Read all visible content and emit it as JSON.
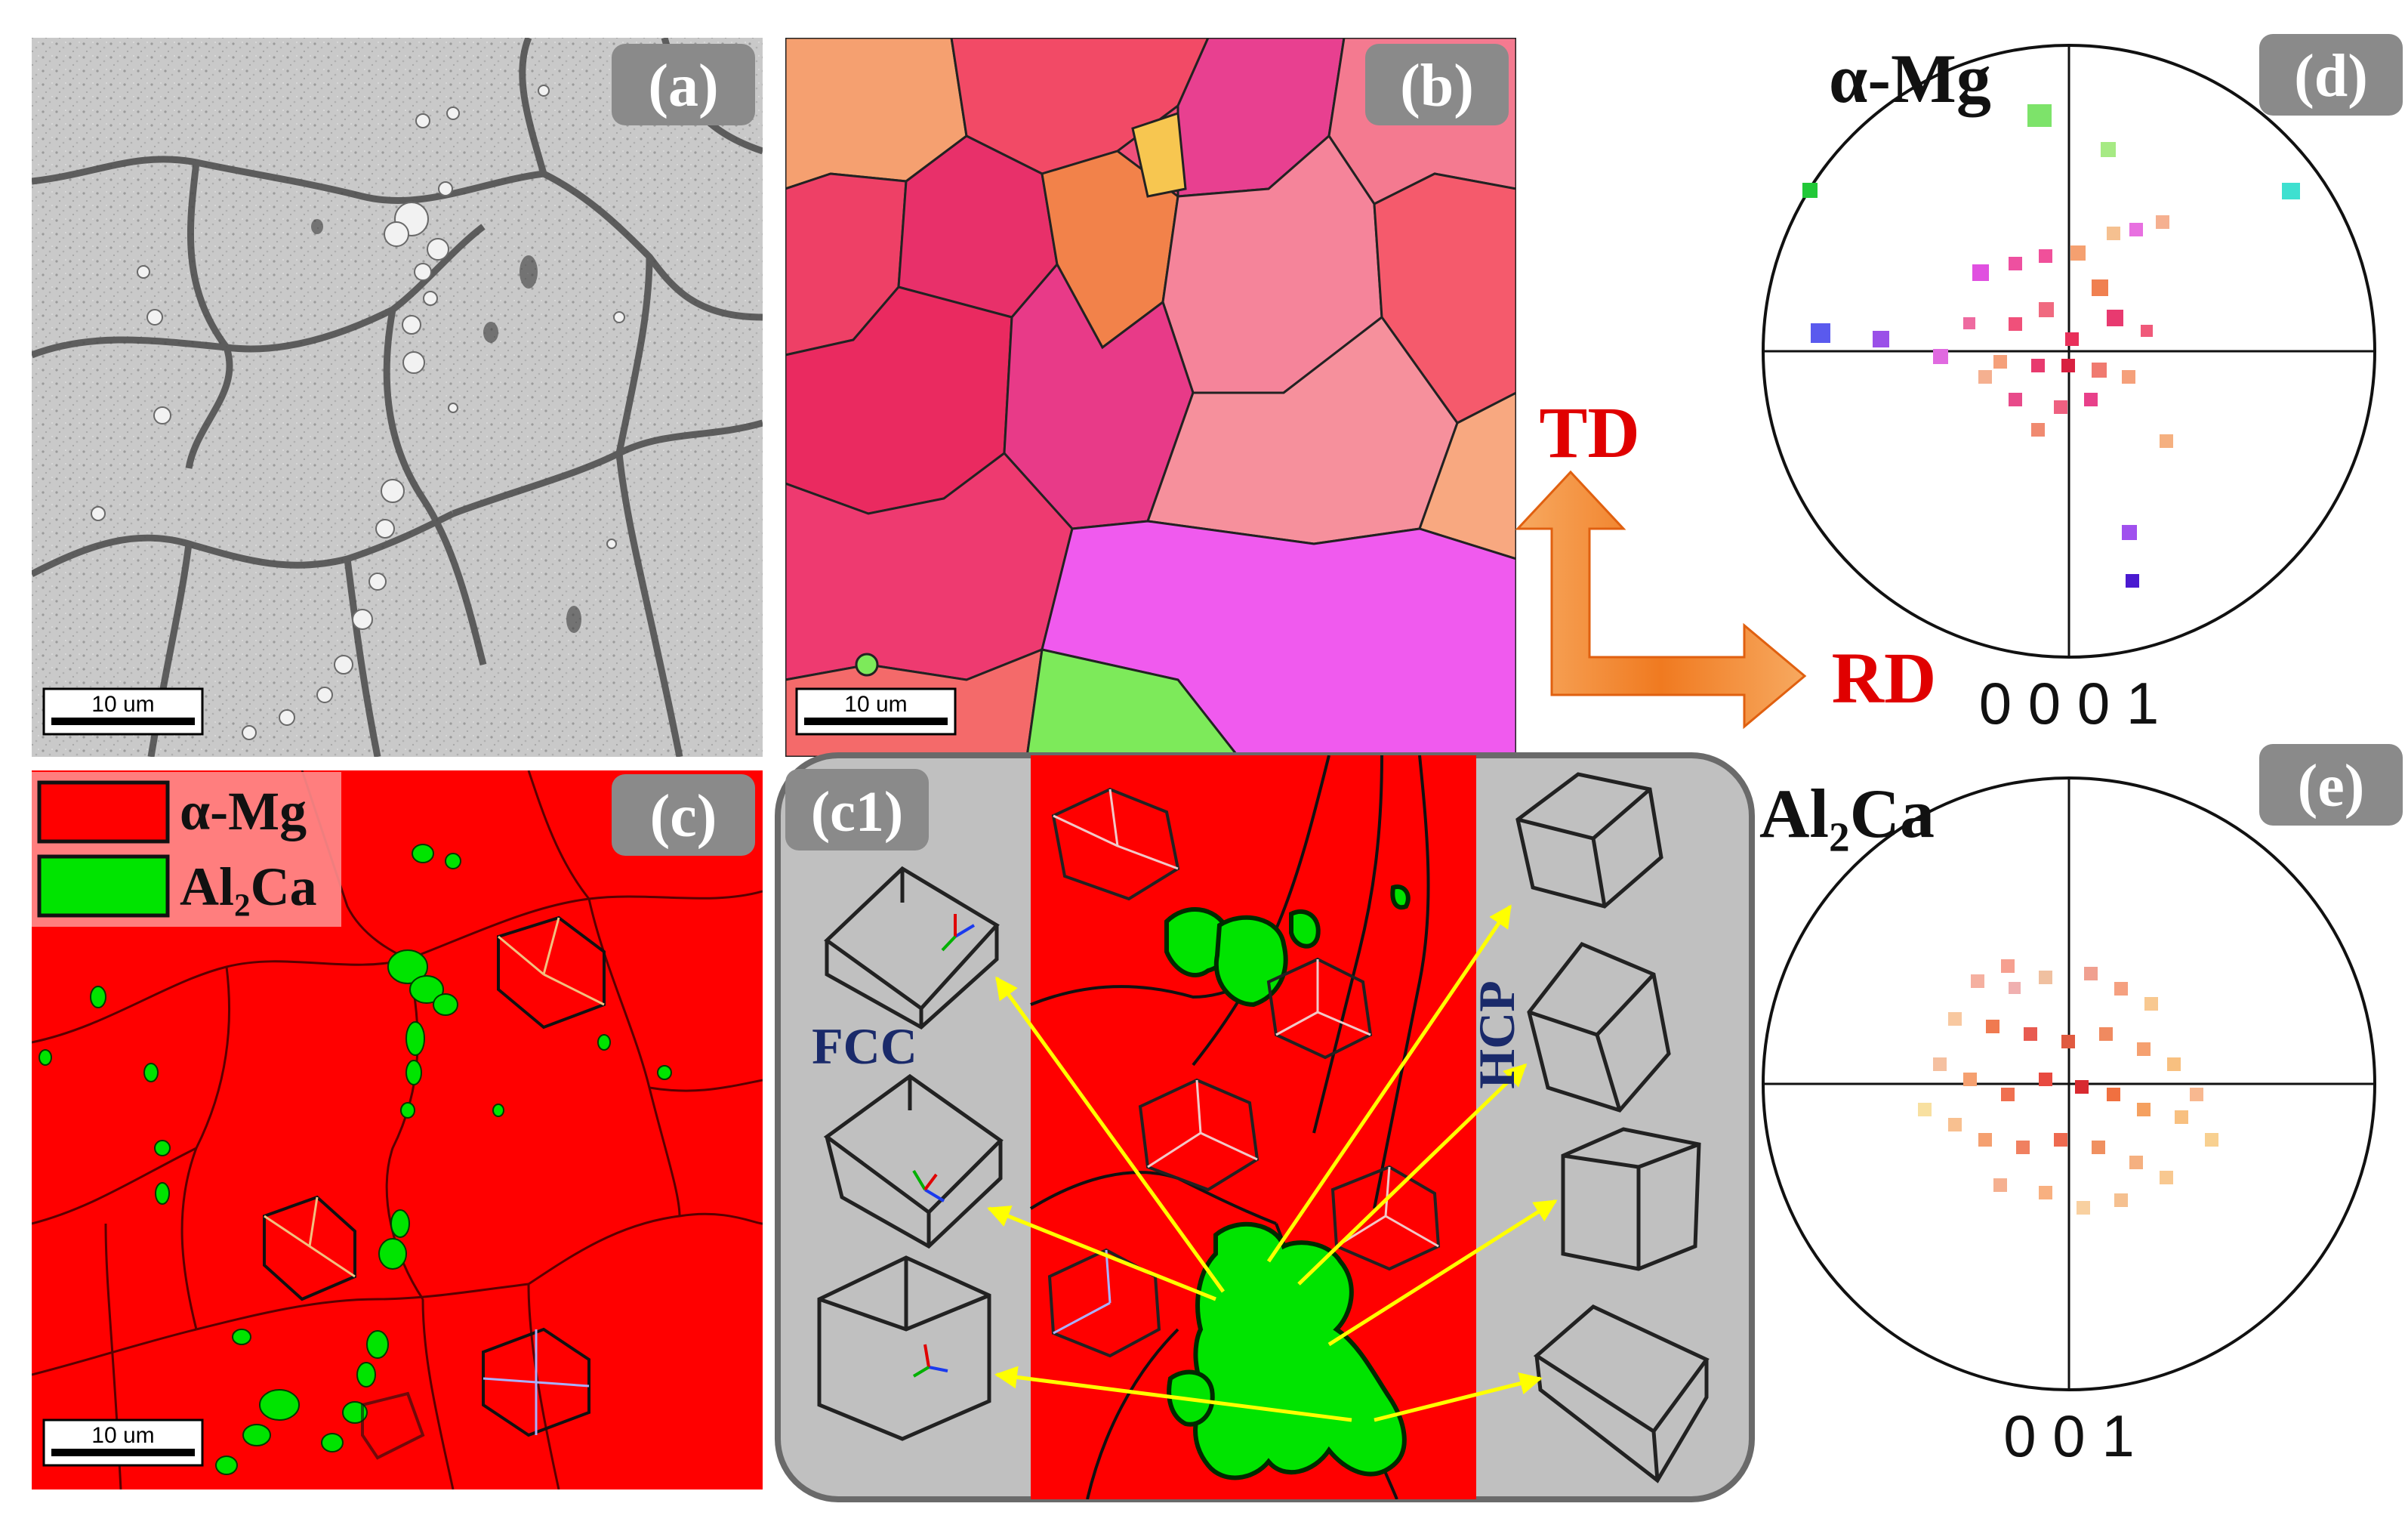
{
  "panels": {
    "a": {
      "label": "(a)",
      "scalebar": "10 um"
    },
    "b": {
      "label": "(b)",
      "scalebar": "10 um"
    },
    "c": {
      "label": "(c)",
      "scalebar": "10 um",
      "legend": [
        {
          "name": "α-Mg",
          "color": "#ff0000"
        },
        {
          "name": "Al₂Ca",
          "color": "#00e400"
        }
      ]
    },
    "c1": {
      "label": "(c1)",
      "left_tag": "FCC",
      "right_tag": "HCP"
    },
    "d": {
      "label": "(d)",
      "phase": "α-Mg",
      "pole": "0 0 0 1"
    },
    "e": {
      "label": "(e)",
      "phase": "Al₂Ca",
      "pole": "0 0 1"
    }
  },
  "axes": {
    "td": "TD",
    "rd": "RD"
  },
  "colors": {
    "matrix": "#ff0000",
    "al2ca": "#00e400",
    "label_box": "#8a8a8a",
    "arrow": "#ffff00",
    "axis_arrow": "#f07a20",
    "axis_text": "#e00000"
  }
}
